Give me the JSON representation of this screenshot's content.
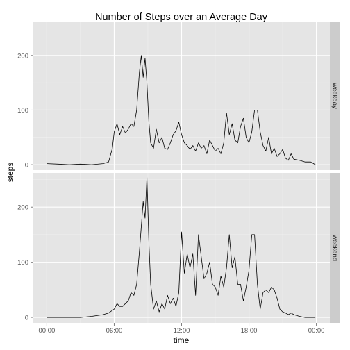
{
  "chart_data": {
    "type": "line",
    "title": "Number of Steps over an Average Day",
    "xlabel": "time",
    "ylabel": "steps",
    "x_ticks": [
      "00:00",
      "06:00",
      "12:00",
      "18:00",
      "00:00"
    ],
    "x_tick_hours": [
      0,
      6,
      12,
      18,
      24
    ],
    "xlim_hours": [
      -1.2,
      25.2
    ],
    "y_ticks": [
      0,
      100,
      200
    ],
    "ylim": [
      -10,
      262
    ],
    "grid": true,
    "facets": [
      {
        "label": "weekday",
        "x": [
          "00:00",
          "01:00",
          "02:00",
          "03:00",
          "04:00",
          "05:00",
          "05:30",
          "05:50",
          "06:00",
          "06:15",
          "06:30",
          "06:45",
          "07:00",
          "07:15",
          "07:30",
          "07:45",
          "08:00",
          "08:15",
          "08:25",
          "08:35",
          "08:45",
          "08:55",
          "09:05",
          "09:15",
          "09:30",
          "09:45",
          "10:00",
          "10:15",
          "10:30",
          "10:45",
          "11:00",
          "11:15",
          "11:30",
          "11:45",
          "12:00",
          "12:15",
          "12:30",
          "12:45",
          "13:00",
          "13:15",
          "13:30",
          "13:45",
          "14:00",
          "14:15",
          "14:30",
          "14:45",
          "15:00",
          "15:15",
          "15:30",
          "15:45",
          "16:00",
          "16:15",
          "16:30",
          "16:45",
          "17:00",
          "17:15",
          "17:30",
          "17:45",
          "18:00",
          "18:15",
          "18:30",
          "18:45",
          "19:00",
          "19:15",
          "19:30",
          "19:45",
          "20:00",
          "20:15",
          "20:30",
          "20:45",
          "21:00",
          "21:15",
          "21:30",
          "21:45",
          "22:00",
          "22:30",
          "23:00",
          "23:30",
          "23:55"
        ],
        "y": [
          2,
          1,
          0,
          1,
          0,
          2,
          5,
          30,
          60,
          75,
          55,
          70,
          58,
          65,
          75,
          70,
          100,
          170,
          200,
          160,
          195,
          150,
          80,
          40,
          30,
          65,
          40,
          50,
          30,
          28,
          40,
          55,
          62,
          78,
          55,
          40,
          35,
          28,
          35,
          25,
          40,
          30,
          35,
          20,
          45,
          35,
          25,
          30,
          20,
          40,
          95,
          55,
          75,
          45,
          40,
          70,
          85,
          50,
          40,
          60,
          100,
          100,
          60,
          35,
          25,
          50,
          20,
          30,
          15,
          20,
          28,
          12,
          8,
          20,
          10,
          8,
          5,
          5,
          0
        ]
      },
      {
        "label": "weekend",
        "x": [
          "00:00",
          "01:00",
          "02:00",
          "03:00",
          "04:00",
          "05:00",
          "05:30",
          "06:00",
          "06:15",
          "06:30",
          "06:45",
          "07:00",
          "07:15",
          "07:30",
          "07:45",
          "08:00",
          "08:15",
          "08:25",
          "08:35",
          "08:45",
          "08:55",
          "09:05",
          "09:15",
          "09:30",
          "09:45",
          "10:00",
          "10:15",
          "10:30",
          "10:45",
          "11:00",
          "11:15",
          "11:30",
          "11:45",
          "12:00",
          "12:15",
          "12:30",
          "12:45",
          "13:00",
          "13:15",
          "13:30",
          "13:45",
          "14:00",
          "14:15",
          "14:30",
          "14:45",
          "15:00",
          "15:15",
          "15:30",
          "15:45",
          "16:00",
          "16:15",
          "16:30",
          "16:45",
          "17:00",
          "17:15",
          "17:30",
          "17:45",
          "18:00",
          "18:15",
          "18:30",
          "18:45",
          "19:00",
          "19:15",
          "19:30",
          "19:45",
          "20:00",
          "20:15",
          "20:30",
          "20:45",
          "21:00",
          "21:15",
          "21:30",
          "21:45",
          "22:00",
          "22:30",
          "23:00",
          "23:30",
          "23:55"
        ],
        "y": [
          0,
          0,
          0,
          0,
          2,
          5,
          8,
          15,
          25,
          20,
          20,
          25,
          30,
          45,
          40,
          60,
          120,
          165,
          210,
          180,
          255,
          140,
          60,
          15,
          30,
          10,
          25,
          15,
          40,
          25,
          35,
          20,
          45,
          155,
          80,
          115,
          90,
          115,
          40,
          150,
          110,
          70,
          80,
          100,
          60,
          55,
          40,
          75,
          55,
          90,
          150,
          90,
          110,
          60,
          60,
          30,
          55,
          85,
          150,
          150,
          60,
          15,
          45,
          50,
          45,
          55,
          50,
          35,
          15,
          10,
          8,
          5,
          8,
          5,
          2,
          0,
          0,
          0
        ]
      }
    ]
  }
}
